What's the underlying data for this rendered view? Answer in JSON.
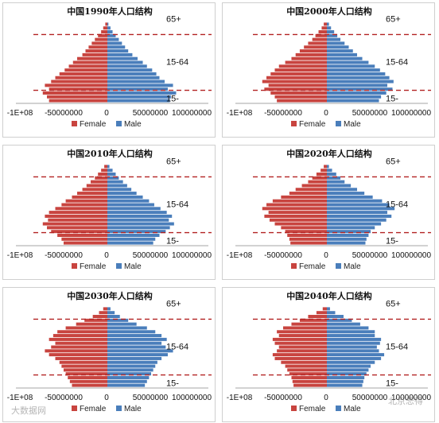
{
  "colors": {
    "female": "#c8443f",
    "male": "#4a7ebb",
    "divider": "#b22222"
  },
  "watermarks": {
    "left": "大数据网",
    "right": "北京悲得"
  },
  "chart_data": [
    {
      "type": "bar",
      "title": "中国1990年人口结构",
      "series": [
        {
          "name": "Female"
        },
        {
          "name": "Male"
        }
      ],
      "xlim": [
        -100000000,
        100000000
      ],
      "xticks": [
        "-1E+08",
        "-50000000",
        "0",
        "50000000",
        "100000000"
      ],
      "age_bands": [
        "65+",
        "15-64",
        "15-"
      ],
      "female": [
        2,
        4,
        6,
        9,
        12,
        15,
        18,
        21,
        24,
        29,
        33,
        37,
        41,
        46,
        50,
        54,
        60,
        56,
        62,
        58,
        56
      ],
      "male": [
        1,
        3,
        5,
        8,
        11,
        14,
        17,
        20,
        24,
        29,
        34,
        38,
        43,
        47,
        50,
        55,
        63,
        58,
        66,
        61,
        60
      ]
    },
    {
      "type": "bar",
      "title": "中国2000年人口结构",
      "series": [
        {
          "name": "Female"
        },
        {
          "name": "Male"
        }
      ],
      "xlim": [
        -100000000,
        100000000
      ],
      "xticks": [
        "-1E+08",
        "-50000000",
        "0",
        "50000000",
        "100000000"
      ],
      "age_bands": [
        "65+",
        "15-64",
        "15-"
      ],
      "female": [
        3,
        5,
        8,
        11,
        14,
        18,
        22,
        26,
        30,
        34,
        40,
        46,
        50,
        54,
        58,
        62,
        56,
        60,
        54,
        50,
        48
      ],
      "male": [
        2,
        4,
        7,
        10,
        13,
        17,
        21,
        25,
        29,
        34,
        40,
        46,
        51,
        56,
        60,
        64,
        58,
        63,
        57,
        52,
        50
      ]
    },
    {
      "type": "bar",
      "title": "中国2010年人口结构",
      "series": [
        {
          "name": "Female"
        },
        {
          "name": "Male"
        }
      ],
      "xlim": [
        -100000000,
        100000000
      ],
      "xticks": [
        "-1E+08",
        "-50000000",
        "0",
        "50000000",
        "100000000"
      ],
      "age_bands": [
        "65+",
        "15-64",
        "15-"
      ],
      "female": [
        3,
        6,
        9,
        12,
        16,
        20,
        24,
        29,
        34,
        40,
        44,
        50,
        56,
        60,
        57,
        62,
        58,
        54,
        48,
        44,
        42
      ],
      "male": [
        2,
        5,
        8,
        11,
        15,
        19,
        23,
        28,
        34,
        40,
        45,
        51,
        57,
        62,
        59,
        64,
        60,
        56,
        50,
        46,
        44
      ]
    },
    {
      "type": "bar",
      "title": "中国2020年人口结构",
      "series": [
        {
          "name": "Female"
        },
        {
          "name": "Male"
        }
      ],
      "xlim": [
        -100000000,
        100000000
      ],
      "xticks": [
        "-1E+08",
        "-50000000",
        "0",
        "50000000",
        "100000000"
      ],
      "age_bands": [
        "65+",
        "15-64",
        "15-"
      ],
      "female": [
        3,
        6,
        10,
        14,
        18,
        24,
        30,
        36,
        44,
        52,
        58,
        62,
        56,
        60,
        55,
        50,
        44,
        40,
        38,
        36,
        35
      ],
      "male": [
        2,
        5,
        9,
        13,
        17,
        23,
        29,
        36,
        44,
        53,
        60,
        65,
        58,
        62,
        57,
        52,
        46,
        42,
        40,
        38,
        37
      ]
    },
    {
      "type": "bar",
      "title": "中国2030年人口结构",
      "series": [
        {
          "name": "Female"
        },
        {
          "name": "Male"
        }
      ],
      "xlim": [
        -100000000,
        100000000
      ],
      "xticks": [
        "-1E+08",
        "-50000000",
        "0",
        "50000000",
        "100000000"
      ],
      "age_bands": [
        "65+",
        "15-64",
        "15-"
      ],
      "female": [
        4,
        8,
        14,
        22,
        30,
        40,
        48,
        52,
        56,
        50,
        54,
        60,
        56,
        50,
        46,
        44,
        42,
        40,
        38,
        36,
        34
      ],
      "male": [
        3,
        7,
        12,
        20,
        28,
        38,
        46,
        52,
        57,
        52,
        56,
        63,
        58,
        52,
        48,
        46,
        44,
        42,
        40,
        38,
        36
      ]
    },
    {
      "type": "bar",
      "title": "中国2040年人口结构",
      "series": [
        {
          "name": "Female"
        },
        {
          "name": "Male"
        }
      ],
      "xlim": [
        -100000000,
        100000000
      ],
      "xticks": [
        "-1E+08",
        "-50000000",
        "0",
        "50000000",
        "100000000"
      ],
      "age_bands": [
        "65+",
        "15-64",
        "15-"
      ],
      "female": [
        4,
        10,
        18,
        26,
        34,
        42,
        48,
        46,
        52,
        50,
        46,
        48,
        52,
        50,
        44,
        40,
        38,
        36,
        34,
        33,
        32
      ],
      "male": [
        3,
        8,
        16,
        24,
        32,
        40,
        46,
        46,
        52,
        51,
        48,
        50,
        55,
        52,
        46,
        42,
        40,
        38,
        36,
        35,
        34
      ]
    }
  ]
}
